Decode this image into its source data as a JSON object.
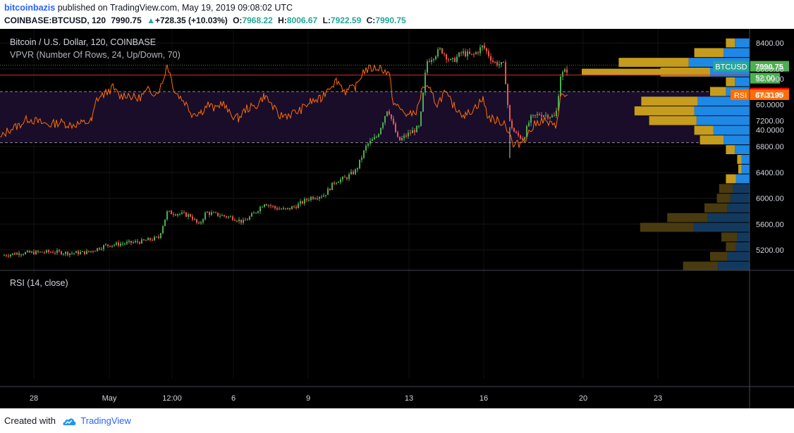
{
  "header": {
    "author": "bitcoinbazis",
    "published_text": "published on TradingView.com, May 19, 2019 09:08:02 UTC",
    "symbol": "COINBASE:BTCUSD, 120",
    "last": "7990.75",
    "change_arrow": "▲",
    "change": "+728.35 (+10.03%)",
    "o_label": "O:",
    "o": "7968.22",
    "h_label": "H:",
    "h": "8006.67",
    "l_label": "L:",
    "l": "7922.59",
    "c_label": "C:",
    "c": "7990.75"
  },
  "footer": {
    "created_with": "Created with",
    "brand": "TradingView",
    "logo_icon": "tradingview-cloud-icon"
  },
  "colors": {
    "up": "#26a69a",
    "candle_up": "#4caf50",
    "down": "#ef5350",
    "rsi": "#ff6d00",
    "vp_up": "#1e88e5",
    "vp_down": "#c69c1c",
    "bg": "#000000"
  },
  "chart_data": [
    {
      "type": "candlestick",
      "title": "Bitcoin / U.S. Dollar, 120, COINBASE",
      "subtitle": "VPVR (Number Of Rows, 24, Up/Down, 70)",
      "ylim": [
        5000,
        8550
      ],
      "y_ticks": [
        "8400.00",
        "8000.00",
        "7600.00",
        "7200.00",
        "6800.00",
        "6400.00",
        "6000.00",
        "5600.00",
        "5200.00"
      ],
      "x_ticks": [
        "28",
        "May",
        "12:00",
        "6",
        "9",
        "13",
        "16",
        "20",
        "23"
      ],
      "price_path": [
        [
          0,
          5110
        ],
        [
          25,
          5150
        ],
        [
          50,
          5160
        ],
        [
          75,
          5170
        ],
        [
          100,
          5150
        ],
        [
          125,
          5165
        ],
        [
          150,
          5270
        ],
        [
          175,
          5300
        ],
        [
          200,
          5330
        ],
        [
          225,
          5390
        ],
        [
          237,
          5780
        ],
        [
          255,
          5760
        ],
        [
          270,
          5730
        ],
        [
          282,
          5580
        ],
        [
          292,
          5780
        ],
        [
          310,
          5740
        ],
        [
          330,
          5700
        ],
        [
          345,
          5630
        ],
        [
          360,
          5760
        ],
        [
          375,
          5930
        ],
        [
          390,
          5850
        ],
        [
          405,
          5820
        ],
        [
          420,
          5880
        ],
        [
          440,
          6010
        ],
        [
          460,
          6050
        ],
        [
          475,
          6260
        ],
        [
          490,
          6310
        ],
        [
          505,
          6430
        ],
        [
          520,
          6820
        ],
        [
          535,
          6960
        ],
        [
          550,
          7400
        ],
        [
          565,
          6880
        ],
        [
          580,
          7000
        ],
        [
          595,
          7100
        ],
        [
          605,
          8110
        ],
        [
          615,
          8200
        ],
        [
          625,
          8300
        ],
        [
          640,
          8100
        ],
        [
          655,
          8250
        ],
        [
          670,
          8200
        ],
        [
          685,
          8350
        ],
        [
          700,
          8100
        ],
        [
          715,
          8050
        ],
        [
          722,
          7200
        ],
        [
          730,
          7000
        ],
        [
          742,
          6920
        ],
        [
          752,
          7230
        ],
        [
          765,
          7300
        ],
        [
          778,
          7280
        ],
        [
          788,
          7250
        ],
        [
          795,
          7900
        ],
        [
          805,
          7990
        ]
      ],
      "last_price": {
        "label": "BTCUSD",
        "value": "7990.75",
        "y": 7990.75,
        "countdown": "52:00"
      },
      "red_line": {
        "value": "7903.93",
        "y": 7903.93
      },
      "volume_profile": {
        "name": "VPVR",
        "rows": [
          {
            "price": 8400,
            "up": 0.13,
            "down": 0.08
          },
          {
            "price": 8250,
            "up": 0.23,
            "down": 0.26
          },
          {
            "price": 8100,
            "up": 0.54,
            "down": 0.62,
            "highlight": true
          },
          {
            "price": 7950,
            "up": 0.35,
            "down": 0.44
          },
          {
            "price": 7800,
            "up": 0.13,
            "down": 0.08
          },
          {
            "price": 7650,
            "up": 0.21,
            "down": 0.14
          },
          {
            "price": 7500,
            "up": 0.46,
            "down": 0.5
          },
          {
            "price": 7350,
            "up": 0.49,
            "down": 0.53
          },
          {
            "price": 7200,
            "up": 0.47,
            "down": 0.42
          },
          {
            "price": 7050,
            "up": 0.32,
            "down": 0.17
          },
          {
            "price": 6900,
            "up": 0.23,
            "down": 0.21
          },
          {
            "price": 6750,
            "up": 0.13,
            "down": 0.08
          },
          {
            "price": 6600,
            "up": 0.07,
            "down": 0.04
          },
          {
            "price": 6450,
            "up": 0.07,
            "down": 0.03
          },
          {
            "price": 6300,
            "up": 0.12,
            "down": 0.09
          },
          {
            "price": 6150,
            "up": 0.15,
            "down": 0.12
          },
          {
            "price": 6000,
            "up": 0.17,
            "down": 0.12
          },
          {
            "price": 5850,
            "up": 0.2,
            "down": 0.2
          },
          {
            "price": 5700,
            "up": 0.37,
            "down": 0.36
          },
          {
            "price": 5550,
            "up": 0.5,
            "down": 0.47
          },
          {
            "price": 5400,
            "up": 0.11,
            "down": 0.14
          },
          {
            "price": 5250,
            "up": 0.12,
            "down": 0.09
          },
          {
            "price": 5100,
            "up": 0.2,
            "down": 0.15
          },
          {
            "price": 4950,
            "up": 0.28,
            "down": 0.31
          }
        ]
      }
    },
    {
      "type": "line",
      "title": "RSI (14, close)",
      "ylim": [
        25,
        95
      ],
      "y_ticks": [
        "80.0000",
        "60.0000",
        "40.0000"
      ],
      "bands": [
        70,
        30
      ],
      "last_label": "RSI",
      "last_value": "67.3195",
      "last_y": 67.3195,
      "series": [
        {
          "values": [
            [
              0,
              33
            ],
            [
              12,
              40
            ],
            [
              25,
              43
            ],
            [
              40,
              49
            ],
            [
              55,
              46
            ],
            [
              70,
              44
            ],
            [
              85,
              46
            ],
            [
              100,
              44
            ],
            [
              115,
              45
            ],
            [
              130,
              47
            ],
            [
              137,
              64
            ],
            [
              150,
              69
            ],
            [
              160,
              73
            ],
            [
              170,
              66
            ],
            [
              180,
              68
            ],
            [
              195,
              64
            ],
            [
              210,
              71
            ],
            [
              222,
              69
            ],
            [
              230,
              76
            ],
            [
              237,
              92
            ],
            [
              248,
              70
            ],
            [
              262,
              62
            ],
            [
              272,
              53
            ],
            [
              285,
              54
            ],
            [
              295,
              60
            ],
            [
              305,
              56
            ],
            [
              315,
              62
            ],
            [
              325,
              53
            ],
            [
              338,
              49
            ],
            [
              350,
              57
            ],
            [
              362,
              58
            ],
            [
              375,
              67
            ],
            [
              385,
              60
            ],
            [
              395,
              51
            ],
            [
              410,
              52
            ],
            [
              425,
              55
            ],
            [
              440,
              62
            ],
            [
              455,
              64
            ],
            [
              465,
              73
            ],
            [
              478,
              79
            ],
            [
              490,
              70
            ],
            [
              505,
              74
            ],
            [
              515,
              86
            ],
            [
              525,
              88
            ],
            [
              540,
              89
            ],
            [
              552,
              83
            ],
            [
              558,
              61
            ],
            [
              568,
              56
            ],
            [
              580,
              51
            ],
            [
              592,
              56
            ],
            [
              600,
              75
            ],
            [
              610,
              70
            ],
            [
              620,
              60
            ],
            [
              630,
              69
            ],
            [
              645,
              58
            ],
            [
              660,
              51
            ],
            [
              672,
              57
            ],
            [
              685,
              64
            ],
            [
              692,
              50
            ],
            [
              705,
              47
            ],
            [
              715,
              46
            ],
            [
              722,
              38
            ],
            [
              728,
              27
            ],
            [
              738,
              30
            ],
            [
              748,
              36
            ],
            [
              758,
              44
            ],
            [
              768,
              48
            ],
            [
              778,
              45
            ],
            [
              788,
              42
            ],
            [
              795,
              66
            ],
            [
              805,
              67.3
            ]
          ]
        }
      ]
    }
  ]
}
